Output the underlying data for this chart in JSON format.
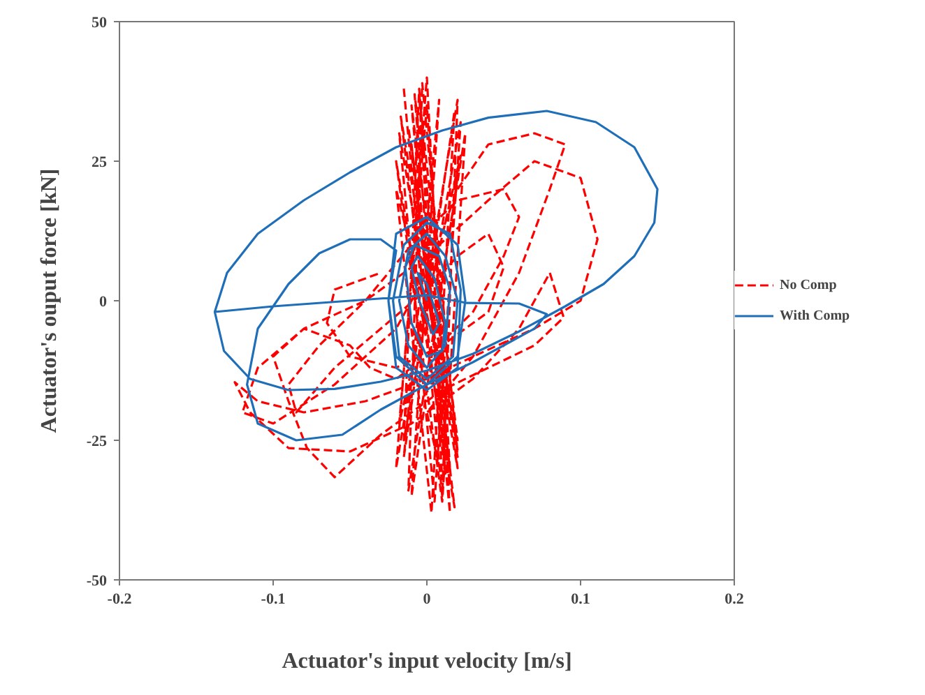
{
  "chart_data": {
    "type": "line",
    "xlabel": "Actuator's input velocity [m/s]",
    "ylabel": "Actuator's ouput force [kN]",
    "xlim": [
      -0.2,
      0.2
    ],
    "xticks": [
      -0.2,
      -0.1,
      0,
      0.1,
      0.2
    ],
    "ylim": [
      -50,
      50
    ],
    "yticks": [
      -50,
      -25,
      0,
      25,
      50
    ],
    "grid": false,
    "legend": "right",
    "series": [
      {
        "name": "No Comp",
        "color": "#ff0000",
        "line_style": "dashed",
        "x": [
          -0.015,
          0.01,
          0.02,
          -0.02,
          0.0,
          0.015,
          -0.01,
          0.02,
          -0.018,
          0.005,
          0.022,
          -0.015,
          -0.005,
          0.015,
          -0.01,
          0.018,
          -0.02,
          0.01,
          0.025,
          -0.012,
          -0.003,
          0.02,
          -0.017,
          0.012,
          -0.008,
          0.02,
          -0.02,
          0.003,
          0.018,
          -0.015,
          0.008,
          -0.01,
          0.022,
          -0.018,
          0.0,
          0.015,
          -0.012,
          0.02,
          -0.005,
          0.01,
          0.0,
          0.03,
          0.06,
          0.08,
          0.09,
          0.07,
          0.04,
          0.02,
          0.0,
          -0.02,
          -0.06,
          -0.1,
          -0.12,
          -0.11,
          -0.08,
          -0.04,
          0.0,
          0.04,
          0.07,
          0.1,
          0.111,
          0.1,
          0.07,
          0.03,
          0.0,
          -0.04,
          -0.08,
          -0.11,
          -0.125,
          -0.115,
          -0.09,
          -0.05,
          -0.01,
          0.03,
          0.06,
          0.08,
          0.089,
          0.07,
          0.04,
          0.01,
          -0.03,
          -0.06,
          -0.078,
          -0.09,
          -0.1,
          -0.08,
          -0.05,
          -0.037,
          -0.02,
          0.0,
          0.03,
          0.05,
          0.06,
          0.05,
          0.02,
          -0.01,
          -0.04,
          -0.07,
          -0.09,
          -0.085,
          -0.06,
          -0.03,
          0.0,
          0.02,
          0.04,
          0.05,
          0.04,
          0.01,
          -0.02,
          -0.05,
          -0.065,
          -0.06,
          -0.03
        ],
        "values": [
          38,
          -35,
          36,
          -30,
          40,
          -38,
          35,
          -30,
          30,
          -36,
          32,
          -25,
          38,
          -33,
          28,
          -37,
          25,
          -36,
          30,
          -34,
          39,
          -28,
          33,
          -31,
          37,
          -25,
          20,
          -38,
          34,
          -28,
          36,
          -35,
          26,
          -22,
          35,
          -30,
          31,
          -27,
          37,
          -32,
          -20,
          -10,
          5,
          20,
          28,
          30,
          28,
          20,
          5,
          -5,
          -15,
          -22,
          -20,
          -12,
          -5,
          0,
          8,
          18,
          25,
          22,
          11,
          0,
          -5,
          -10,
          -14,
          -18,
          -20,
          -18,
          -14.6,
          -20,
          -26.4,
          -27,
          -22,
          -14,
          -5,
          5,
          -3,
          -8,
          -12,
          -16,
          -24,
          -31.6,
          -26.4,
          -18,
          -10,
          -5,
          -8,
          -12,
          -14,
          -10,
          -2,
          8,
          15,
          20,
          18,
          10,
          0,
          -8,
          -15,
          -20,
          -12,
          -5,
          2,
          8,
          12,
          6,
          -2,
          -8,
          -12,
          -10,
          -4,
          2,
          5
        ]
      },
      {
        "name": "With Comp",
        "color": "#1f6fb8",
        "line_style": "solid",
        "x": [
          -0.138,
          -0.13,
          -0.11,
          -0.08,
          -0.05,
          -0.02,
          0.01,
          0.04,
          0.078,
          0.11,
          0.135,
          0.15,
          0.148,
          0.135,
          0.115,
          0.09,
          0.06,
          0.03,
          0.0,
          -0.03,
          -0.06,
          -0.09,
          -0.115,
          -0.132,
          -0.138,
          -0.1,
          -0.05,
          0.0,
          0.026,
          0.06,
          0.078,
          0.07,
          0.05,
          0.03,
          0.0,
          -0.03,
          -0.055,
          -0.085,
          -0.11,
          -0.117,
          -0.11,
          -0.09,
          -0.07,
          -0.05,
          -0.03,
          -0.02,
          -0.025,
          -0.02,
          0.0,
          0.02,
          0.025,
          0.02,
          0.0,
          -0.02,
          -0.025,
          -0.02,
          0.0,
          0.02,
          0.022,
          0.015,
          0.0,
          -0.015,
          -0.022,
          -0.018,
          0.0,
          0.017,
          0.02,
          0.012,
          0.0,
          -0.012,
          -0.018,
          -0.012,
          0.0,
          0.012,
          0.015,
          0.008,
          -0.008,
          -0.014,
          -0.01,
          0.0,
          0.01,
          0.012,
          0.005,
          -0.006,
          -0.01,
          -0.005,
          0.004,
          0.008,
          0.0,
          -0.006,
          0.0
        ],
        "values": [
          -2,
          5,
          12,
          18,
          23,
          27.5,
          30.5,
          32.8,
          34,
          32,
          27.5,
          20,
          14,
          8,
          3,
          -1,
          -5.5,
          -9.5,
          -12.5,
          -14.5,
          -15.8,
          -16,
          -14,
          -9,
          -2,
          -1,
          0,
          1,
          -0.4,
          -0.5,
          -2.4,
          -5,
          -8,
          -11,
          -15,
          -19.5,
          -24,
          -25,
          -22,
          -15,
          -5,
          3,
          8.5,
          11,
          11,
          9,
          0,
          -10,
          -15,
          -10,
          0,
          10,
          15,
          12,
          0,
          -12,
          -16,
          -12,
          2,
          12,
          14,
          10,
          0,
          -10,
          -14,
          -10,
          0,
          8,
          12,
          9,
          0,
          -8,
          -12,
          -8,
          2,
          8,
          10,
          6,
          -4,
          -10,
          -9,
          -4,
          4,
          8,
          6,
          0,
          -6,
          -4,
          3,
          5,
          0
        ]
      }
    ]
  }
}
